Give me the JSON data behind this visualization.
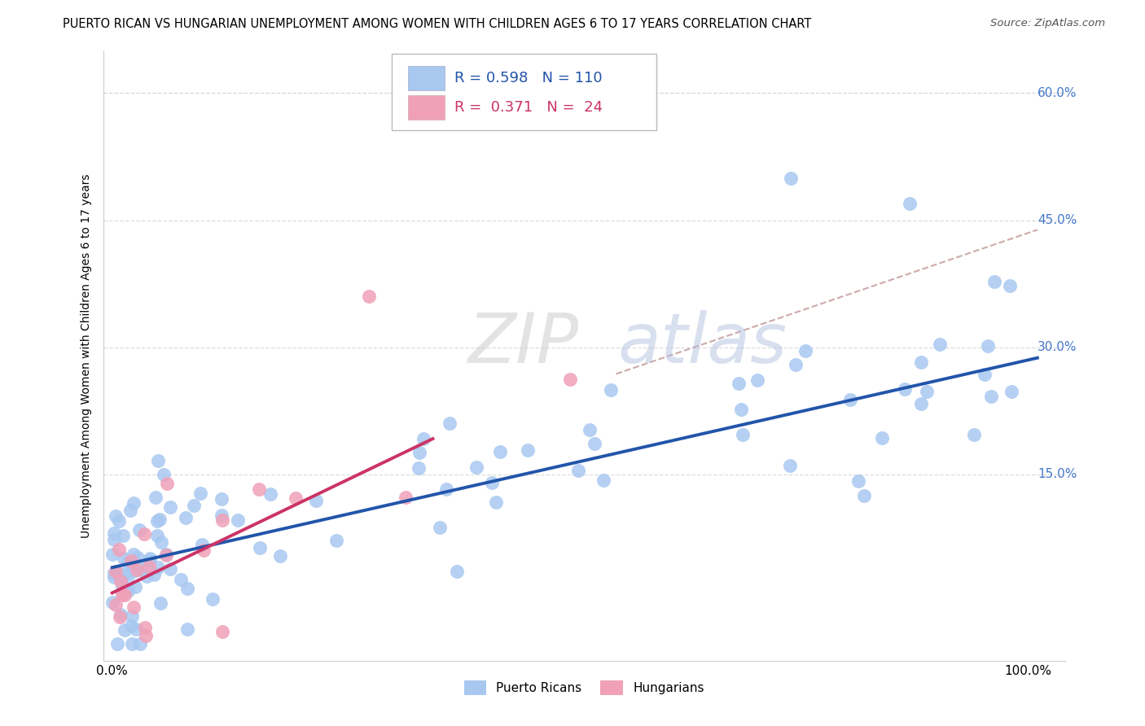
{
  "title": "PUERTO RICAN VS HUNGARIAN UNEMPLOYMENT AMONG WOMEN WITH CHILDREN AGES 6 TO 17 YEARS CORRELATION CHART",
  "source": "Source: ZipAtlas.com",
  "ylabel": "Unemployment Among Women with Children Ages 6 to 17 years",
  "ytick_labels_right": [
    "60.0%",
    "45.0%",
    "30.0%",
    "15.0%"
  ],
  "ytick_positions": [
    0.0,
    0.15,
    0.3,
    0.45,
    0.6
  ],
  "xlim": [
    -0.01,
    1.04
  ],
  "ylim": [
    -0.07,
    0.65
  ],
  "blue_color": "#A8C8F0",
  "pink_color": "#F0A0B8",
  "blue_line_color": "#2255AA",
  "pink_line_color": "#CC3366",
  "dashed_line_color": "#CCAAAA",
  "grid_color": "#DDDDDD",
  "legend_r_blue": "0.598",
  "legend_n_blue": "110",
  "legend_r_pink": "0.371",
  "legend_n_pink": "24",
  "title_fontsize": 10.5,
  "source_fontsize": 9.5,
  "ylabel_fontsize": 10,
  "tick_fontsize": 11,
  "legend_fontsize": 13,
  "blue_slope": 0.245,
  "blue_intercept": 0.04,
  "pink_slope": 0.52,
  "pink_intercept": 0.01,
  "pink_line_xmax": 0.35,
  "dashed_line_xmin": 0.55,
  "dashed_line_xmax": 1.01
}
